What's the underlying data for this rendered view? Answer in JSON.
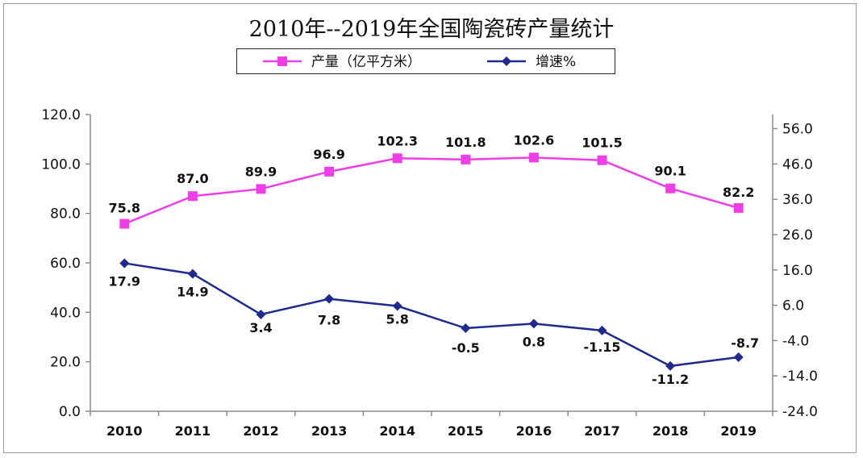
{
  "chart_data": {
    "type": "line",
    "title": "2010年--2019年全国陶瓷砖产量统计",
    "categories": [
      "2010",
      "2011",
      "2012",
      "2013",
      "2014",
      "2015",
      "2016",
      "2017",
      "2018",
      "2019"
    ],
    "series": [
      {
        "name": "产量（亿平方米）",
        "axis": "left",
        "color": "#ee3ee6",
        "marker": "square",
        "values": [
          75.8,
          87.0,
          89.9,
          96.9,
          102.3,
          101.8,
          102.6,
          101.5,
          90.1,
          82.2
        ],
        "labels": [
          "75.8",
          "87.0",
          "89.9",
          "96.9",
          "102.3",
          "101.8",
          "102.6",
          "101.5",
          "90.1",
          "82.2"
        ]
      },
      {
        "name": "增速%",
        "axis": "right",
        "color": "#1f2a8c",
        "marker": "diamond",
        "values": [
          17.9,
          14.9,
          3.4,
          7.8,
          5.8,
          -0.5,
          0.8,
          -1.15,
          -11.2,
          -8.7
        ],
        "labels": [
          "17.9",
          "14.9",
          "3.4",
          "7.8",
          "5.8",
          "-0.5",
          "0.8",
          "-1.15",
          "-11.2",
          "-8.7"
        ]
      }
    ],
    "left_axis": {
      "ylim": [
        0,
        120
      ],
      "ticks": [
        "0.0",
        "20.0",
        "40.0",
        "60.0",
        "80.0",
        "100.0",
        "120.0"
      ]
    },
    "right_axis": {
      "ylim": [
        -24,
        60
      ],
      "ticks": [
        "-24.0",
        "-14.0",
        "-4.0",
        "6.0",
        "16.0",
        "26.0",
        "36.0",
        "46.0",
        "56.0"
      ]
    },
    "grid": false,
    "legend_position": "top-center"
  }
}
